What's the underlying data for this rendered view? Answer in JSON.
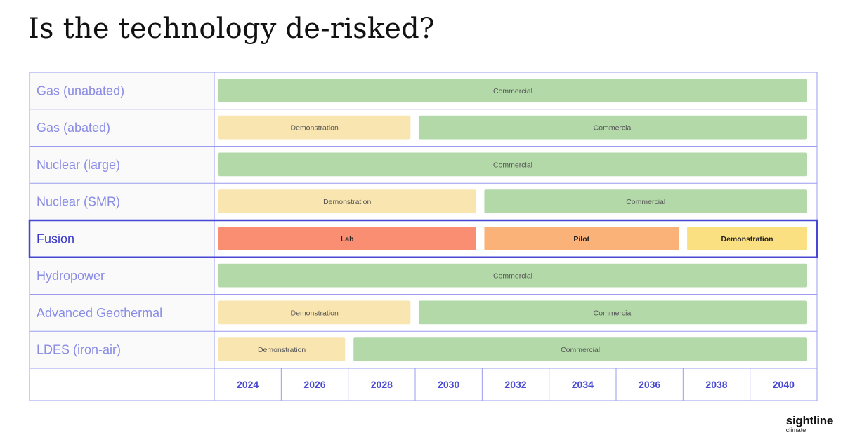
{
  "page": {
    "title": "Is the technology de-risked?",
    "logo_main": "sightline",
    "logo_sub": "climate"
  },
  "colors": {
    "Commercial": "#b3d9a9",
    "Demonstration": "#f9e5b0",
    "Demonstration_highlight": "#fbe082",
    "Lab": "#f98e73",
    "Pilot": "#fbb278",
    "grid": "#9b9cf0",
    "highlight_border": "#4747d6",
    "row_label": "#8a8ce6",
    "highlight_label": "#3838c8",
    "axis_label": "#4a4ad4"
  },
  "chart_data": {
    "type": "gantt",
    "title": "Is the technology de-risked?",
    "x_ticks": [
      "2024",
      "2026",
      "2028",
      "2030",
      "2032",
      "2034",
      "2036",
      "2038",
      "2040"
    ],
    "xlim": [
      2023,
      2041
    ],
    "highlighted_row": "Fusion",
    "rows": [
      {
        "label": "Gas (unabated)",
        "phases": [
          {
            "name": "Commercial",
            "start": 2023,
            "end": 2041
          }
        ]
      },
      {
        "label": "Gas (abated)",
        "phases": [
          {
            "name": "Demonstration",
            "start": 2023,
            "end": 2029
          },
          {
            "name": "Commercial",
            "start": 2029,
            "end": 2041
          }
        ]
      },
      {
        "label": "Nuclear (large)",
        "phases": [
          {
            "name": "Commercial",
            "start": 2023,
            "end": 2041
          }
        ]
      },
      {
        "label": "Nuclear (SMR)",
        "phases": [
          {
            "name": "Demonstration",
            "start": 2023,
            "end": 2031
          },
          {
            "name": "Commercial",
            "start": 2031,
            "end": 2041
          }
        ]
      },
      {
        "label": "Fusion",
        "phases": [
          {
            "name": "Lab",
            "start": 2023,
            "end": 2031
          },
          {
            "name": "Pilot",
            "start": 2031,
            "end": 2037.2
          },
          {
            "name": "Demonstration",
            "start": 2037.2,
            "end": 2041
          }
        ]
      },
      {
        "label": "Hydropower",
        "phases": [
          {
            "name": "Commercial",
            "start": 2023,
            "end": 2041
          }
        ]
      },
      {
        "label": "Advanced Geothermal",
        "phases": [
          {
            "name": "Demonstration",
            "start": 2023,
            "end": 2029
          },
          {
            "name": "Commercial",
            "start": 2029,
            "end": 2041
          }
        ]
      },
      {
        "label": "LDES (iron-air)",
        "phases": [
          {
            "name": "Demonstration",
            "start": 2023,
            "end": 2027
          },
          {
            "name": "Commercial",
            "start": 2027,
            "end": 2041
          }
        ]
      }
    ]
  }
}
